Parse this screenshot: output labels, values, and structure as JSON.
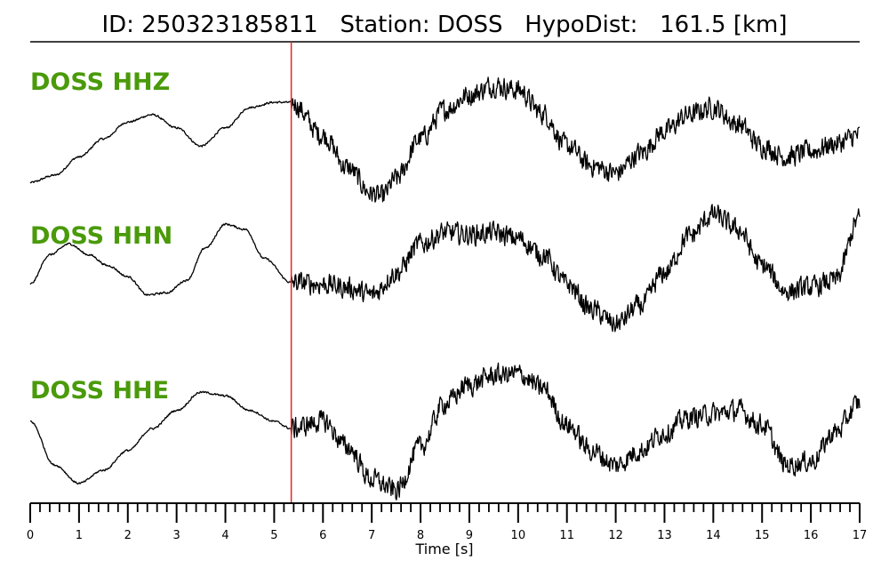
{
  "chart_data": {
    "type": "line",
    "title": "ID: 250323185811   Station: DOSS   HypoDist:   161.5 [km]",
    "xlabel": "Time [s]",
    "xlim": [
      0,
      17
    ],
    "xticks": [
      "0",
      "1",
      "2",
      "3",
      "4",
      "5",
      "6",
      "7",
      "8",
      "9",
      "10",
      "11",
      "12",
      "13",
      "14",
      "15",
      "16",
      "17"
    ],
    "minor_tick_step": 0.2,
    "pick_time": 5.35,
    "pick_color": "#e8231f",
    "label_color": "#4a9a0a",
    "trace_color": "#000000",
    "series": [
      {
        "name": "DOSS HHZ",
        "x": [
          0,
          0.5,
          1,
          1.5,
          2,
          2.5,
          3,
          3.5,
          4,
          4.5,
          5,
          5.35,
          6,
          6.5,
          7,
          7.2,
          7.5,
          8,
          8.5,
          9,
          9.5,
          10,
          10.5,
          11,
          11.5,
          12,
          12.5,
          13,
          13.5,
          14,
          14.5,
          15,
          15.5,
          16,
          16.5,
          17
        ],
        "values": [
          -0.65,
          -0.55,
          -0.3,
          -0.05,
          0.18,
          0.28,
          0.1,
          -0.15,
          0.1,
          0.38,
          0.45,
          0.45,
          0.0,
          -0.45,
          -0.8,
          -0.85,
          -0.6,
          -0.05,
          0.35,
          0.55,
          0.68,
          0.62,
          0.3,
          -0.15,
          -0.42,
          -0.52,
          -0.25,
          0.05,
          0.28,
          0.38,
          0.15,
          -0.15,
          -0.3,
          -0.22,
          -0.12,
          0.0
        ]
      },
      {
        "name": "DOSS HHN",
        "x": [
          0,
          0.4,
          0.8,
          1.2,
          1.6,
          2,
          2.4,
          2.8,
          3.2,
          3.6,
          4,
          4.4,
          4.8,
          5.35,
          6,
          6.5,
          7,
          7.5,
          8,
          8.5,
          9,
          9.5,
          10,
          10.5,
          11,
          11.5,
          12,
          12.5,
          13,
          13.5,
          14,
          14.5,
          15,
          15.5,
          16,
          16.5,
          17
        ],
        "values": [
          -0.2,
          0.2,
          0.35,
          0.2,
          0.05,
          -0.1,
          -0.35,
          -0.32,
          -0.15,
          0.3,
          0.62,
          0.55,
          0.15,
          -0.18,
          -0.2,
          -0.25,
          -0.35,
          -0.05,
          0.35,
          0.5,
          0.48,
          0.5,
          0.42,
          0.2,
          -0.2,
          -0.55,
          -0.75,
          -0.5,
          -0.05,
          0.45,
          0.75,
          0.55,
          0.05,
          -0.3,
          -0.25,
          -0.15,
          0.7
        ]
      },
      {
        "name": "DOSS HHE",
        "x": [
          0,
          0.5,
          1,
          1.5,
          2,
          2.5,
          3,
          3.5,
          4,
          4.5,
          5,
          5.35,
          6,
          6.5,
          7,
          7.5,
          8,
          8.5,
          9,
          9.5,
          10,
          10.5,
          11,
          11.5,
          12,
          12.5,
          13,
          13.5,
          14,
          14.5,
          15,
          15.5,
          16,
          16.5,
          17
        ],
        "values": [
          0.05,
          -0.55,
          -0.8,
          -0.62,
          -0.35,
          -0.05,
          0.2,
          0.45,
          0.4,
          0.2,
          0.05,
          -0.05,
          0.05,
          -0.3,
          -0.75,
          -0.9,
          -0.3,
          0.3,
          0.55,
          0.68,
          0.7,
          0.5,
          0.0,
          -0.35,
          -0.55,
          -0.35,
          -0.1,
          0.1,
          0.15,
          0.2,
          0.0,
          -0.55,
          -0.5,
          -0.1,
          0.3
        ]
      }
    ]
  }
}
